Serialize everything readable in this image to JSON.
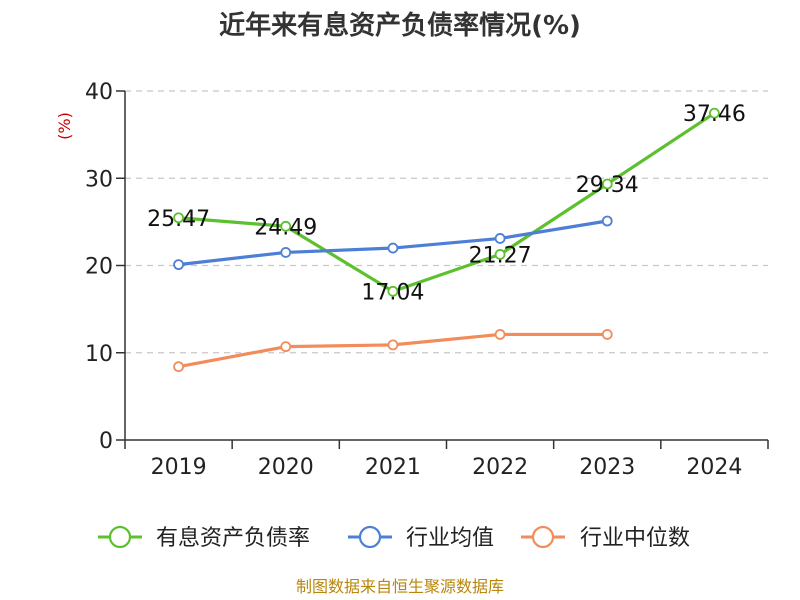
{
  "chart_data": {
    "type": "line",
    "title": "近年来有息资产负债率情况(%)",
    "ylabel": "(%)",
    "categories": [
      "2019",
      "2020",
      "2021",
      "2022",
      "2023",
      "2024"
    ],
    "ylim": [
      0,
      40
    ],
    "yticks": [
      0,
      10,
      20,
      30,
      40
    ],
    "grid": true,
    "legend_position": "bottom",
    "series": [
      {
        "name": "有息资产负债率",
        "color": "#5cc02f",
        "values": [
          25.47,
          24.49,
          17.04,
          21.27,
          29.34,
          37.46
        ],
        "labels": [
          "25.47",
          "24.49",
          "17.04",
          "21.27",
          "29.34",
          "37.46"
        ]
      },
      {
        "name": "行业均值",
        "color": "#4d7fd6",
        "values": [
          20.1,
          21.5,
          22.0,
          23.1,
          25.1,
          null
        ]
      },
      {
        "name": "行业中位数",
        "color": "#f28c5b",
        "values": [
          8.4,
          10.7,
          10.9,
          12.1,
          12.1,
          null
        ]
      }
    ]
  },
  "colors": {
    "title": "#333333",
    "ylabel": "#cc0000",
    "source": "#b8860b",
    "grid": "#c8c8c8",
    "axis": "#333333"
  },
  "source_text": "制图数据来自恒生聚源数据库"
}
